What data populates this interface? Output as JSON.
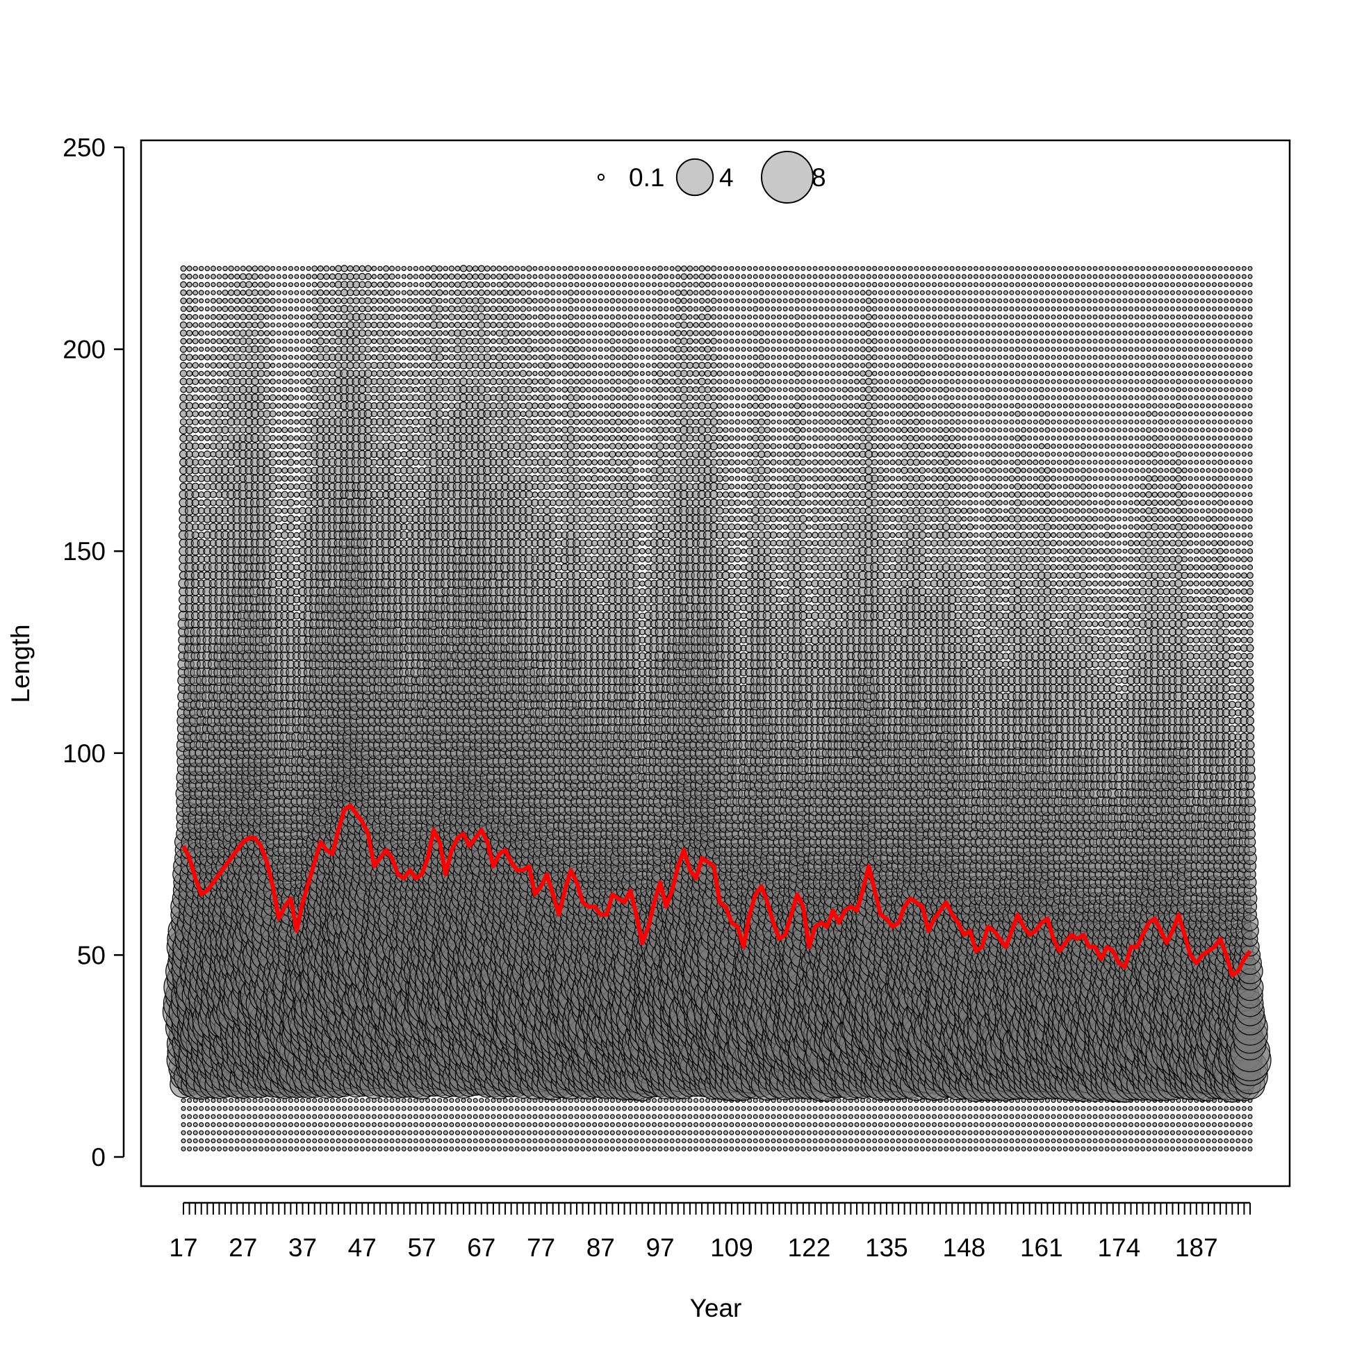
{
  "chart_data": {
    "type": "scatter",
    "subtype": "bubble",
    "xlabel": "Year",
    "ylabel": "Length",
    "ylim": [
      0,
      250
    ],
    "y_ticks": [
      "0",
      "50",
      "100",
      "150",
      "200",
      "250"
    ],
    "x_tick_labels": [
      "17",
      "27",
      "37",
      "47",
      "57",
      "67",
      "77",
      "87",
      "97",
      "109",
      "122",
      "135",
      "148",
      "161",
      "174",
      "187"
    ],
    "bubble_legend": {
      "labels": [
        "0.1",
        "4",
        "8"
      ],
      "values": [
        0.1,
        4,
        8
      ],
      "placement": "top-center"
    },
    "bubble_length_range": [
      2,
      220
    ],
    "series": [
      {
        "label_note": "mean length (red line)",
        "color": "#ff0000",
        "values": [
          77,
          74,
          69,
          65,
          66,
          68,
          70,
          72,
          74,
          76,
          78,
          79,
          79,
          77,
          73,
          67,
          59,
          62,
          64,
          56,
          63,
          68,
          73,
          78,
          76,
          75,
          81,
          86,
          87,
          85,
          83,
          80,
          72,
          74,
          76,
          74,
          70,
          69,
          71,
          69,
          70,
          74,
          81,
          78,
          70,
          76,
          79,
          80,
          77,
          79,
          81,
          78,
          72,
          75,
          76,
          73,
          71,
          71,
          72,
          65,
          67,
          70,
          65,
          60,
          66,
          71,
          68,
          63,
          62,
          62,
          60,
          60,
          65,
          64,
          63,
          66,
          60,
          53,
          57,
          63,
          68,
          62,
          66,
          72,
          76,
          71,
          69,
          74,
          73,
          72,
          63,
          62,
          58,
          57,
          52,
          60,
          65,
          67,
          63,
          58,
          54,
          55,
          60,
          65,
          62,
          52,
          57,
          58,
          57,
          61,
          58,
          61,
          62,
          61,
          66,
          72,
          66,
          60,
          59,
          57,
          58,
          62,
          64,
          63,
          62,
          56,
          59,
          61,
          63,
          60,
          58,
          55,
          56,
          51,
          52,
          57,
          56,
          54,
          52,
          56,
          60,
          57,
          55,
          56,
          58,
          59,
          54,
          51,
          53,
          55,
          54,
          55,
          52,
          52,
          49,
          52,
          51,
          48,
          47,
          52,
          52,
          55,
          58,
          59,
          56,
          53,
          56,
          60,
          55,
          50,
          48,
          50,
          51,
          52,
          54,
          50,
          45,
          46,
          49,
          51
        ]
      }
    ]
  }
}
